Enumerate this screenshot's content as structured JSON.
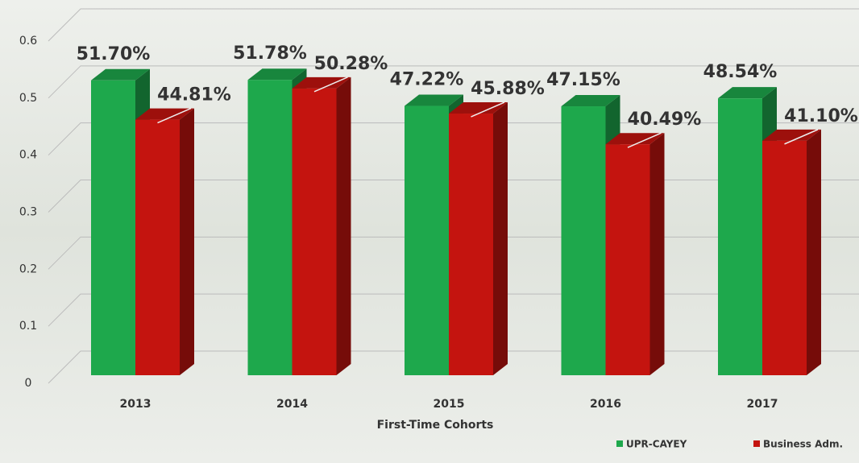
{
  "chart_data": {
    "type": "bar3d",
    "x_label": "First-Time Cohorts",
    "categories": [
      "2013",
      "2014",
      "2015",
      "2016",
      "2017"
    ],
    "series": [
      {
        "name": "UPR-CAYEY",
        "color": "#1ea84c",
        "values": [
          0.517,
          0.5178,
          0.4722,
          0.4715,
          0.4854
        ],
        "value_labels": [
          "51.70%",
          "51.78%",
          "47.22%",
          "47.15%",
          "48.54%"
        ]
      },
      {
        "name": "Business Adm.",
        "color": "#c4140f",
        "values": [
          0.4481,
          0.5028,
          0.4588,
          0.4049,
          0.411
        ],
        "value_labels": [
          "44.81%",
          "50.28%",
          "45.88%",
          "40.49%",
          "41.10%"
        ]
      }
    ],
    "ylim": [
      0,
      0.6
    ],
    "yticks": [
      0,
      0.1,
      0.2,
      0.3,
      0.4,
      0.5,
      0.6
    ],
    "grid": true
  }
}
